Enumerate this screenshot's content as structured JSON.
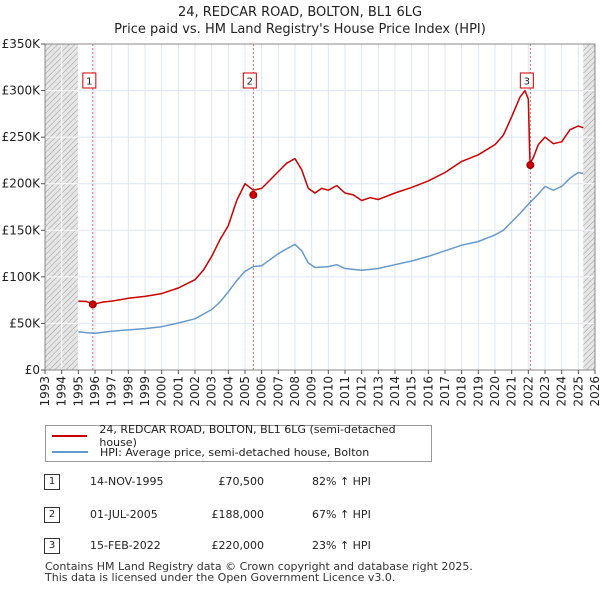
{
  "header": {
    "title": "24, REDCAR ROAD, BOLTON, BL1 6LG",
    "subtitle": "Price paid vs. HM Land Registry's House Price Index (HPI)"
  },
  "chart_data": {
    "type": "line",
    "xlim": [
      1993,
      2026
    ],
    "ylim": [
      0,
      350000
    ],
    "x_ticks": [
      "1993",
      "1994",
      "1995",
      "1996",
      "1997",
      "1998",
      "1999",
      "2000",
      "2001",
      "2002",
      "2003",
      "2004",
      "2005",
      "2006",
      "2007",
      "2008",
      "2009",
      "2010",
      "2011",
      "2012",
      "2013",
      "2014",
      "2015",
      "2016",
      "2017",
      "2018",
      "2019",
      "2020",
      "2021",
      "2022",
      "2023",
      "2024",
      "2025",
      "2026"
    ],
    "y_ticks": [
      {
        "value": 0,
        "label": "£0"
      },
      {
        "value": 50000,
        "label": "£50K"
      },
      {
        "value": 100000,
        "label": "£100K"
      },
      {
        "value": 150000,
        "label": "£150K"
      },
      {
        "value": 200000,
        "label": "£200K"
      },
      {
        "value": 250000,
        "label": "£250K"
      },
      {
        "value": 300000,
        "label": "£300K"
      },
      {
        "value": 350000,
        "label": "£350K"
      }
    ],
    "data_range": [
      1995.0,
      2025.3
    ],
    "series": [
      {
        "name": "24, REDCAR ROAD, BOLTON, BL1 6LG (semi-detached house)",
        "color": "#cc0000",
        "points": [
          [
            1995.0,
            74000
          ],
          [
            1995.5,
            73500
          ],
          [
            1995.87,
            70500
          ],
          [
            1996.5,
            73000
          ],
          [
            1997,
            74000
          ],
          [
            1998,
            77000
          ],
          [
            1999,
            79000
          ],
          [
            2000,
            82000
          ],
          [
            2001,
            88000
          ],
          [
            2002,
            97000
          ],
          [
            2002.5,
            107000
          ],
          [
            2003,
            122000
          ],
          [
            2003.5,
            140000
          ],
          [
            2004,
            155000
          ],
          [
            2004.5,
            182000
          ],
          [
            2005,
            200000
          ],
          [
            2005.5,
            193000
          ],
          [
            2006,
            195000
          ],
          [
            2007,
            213000
          ],
          [
            2007.5,
            222000
          ],
          [
            2008,
            227000
          ],
          [
            2008.4,
            215000
          ],
          [
            2008.8,
            195000
          ],
          [
            2009.2,
            190000
          ],
          [
            2009.6,
            195000
          ],
          [
            2010,
            193000
          ],
          [
            2010.5,
            198000
          ],
          [
            2011,
            190000
          ],
          [
            2011.5,
            188000
          ],
          [
            2012,
            182000
          ],
          [
            2012.5,
            185000
          ],
          [
            2013,
            183000
          ],
          [
            2014,
            190000
          ],
          [
            2015,
            196000
          ],
          [
            2016,
            203000
          ],
          [
            2017,
            212000
          ],
          [
            2018,
            224000
          ],
          [
            2019,
            231000
          ],
          [
            2020,
            242000
          ],
          [
            2020.5,
            252000
          ],
          [
            2021,
            272000
          ],
          [
            2021.5,
            293000
          ],
          [
            2021.8,
            300000
          ],
          [
            2022.0,
            291000
          ],
          [
            2022.1,
            222000
          ],
          [
            2022.3,
            228000
          ],
          [
            2022.6,
            242000
          ],
          [
            2023,
            250000
          ],
          [
            2023.5,
            243000
          ],
          [
            2024,
            245000
          ],
          [
            2024.5,
            258000
          ],
          [
            2025,
            262000
          ],
          [
            2025.3,
            260000
          ]
        ]
      },
      {
        "name": "HPI: Average price, semi-detached house, Bolton",
        "color": "#6699cc",
        "points": [
          [
            1995.0,
            41000
          ],
          [
            1995.5,
            40000
          ],
          [
            1996,
            39500
          ],
          [
            1997,
            41500
          ],
          [
            1998,
            43000
          ],
          [
            1999,
            44500
          ],
          [
            2000,
            46500
          ],
          [
            2001,
            50500
          ],
          [
            2002,
            55000
          ],
          [
            2003,
            65000
          ],
          [
            2003.5,
            73000
          ],
          [
            2004,
            84000
          ],
          [
            2004.5,
            96000
          ],
          [
            2005,
            106000
          ],
          [
            2005.5,
            111000
          ],
          [
            2006,
            112000
          ],
          [
            2007,
            125000
          ],
          [
            2007.5,
            130000
          ],
          [
            2008,
            135000
          ],
          [
            2008.4,
            128000
          ],
          [
            2008.8,
            115000
          ],
          [
            2009.2,
            110000
          ],
          [
            2010,
            111000
          ],
          [
            2010.5,
            113000
          ],
          [
            2011,
            109000
          ],
          [
            2012,
            107000
          ],
          [
            2013,
            109000
          ],
          [
            2014,
            113000
          ],
          [
            2015,
            117000
          ],
          [
            2016,
            122000
          ],
          [
            2017,
            128000
          ],
          [
            2018,
            134000
          ],
          [
            2019,
            138000
          ],
          [
            2020,
            145000
          ],
          [
            2020.5,
            150000
          ],
          [
            2021,
            159000
          ],
          [
            2021.5,
            168000
          ],
          [
            2022,
            178000
          ],
          [
            2022.5,
            187000
          ],
          [
            2023,
            197000
          ],
          [
            2023.5,
            193000
          ],
          [
            2024,
            197000
          ],
          [
            2024.5,
            206000
          ],
          [
            2025,
            212000
          ],
          [
            2025.3,
            211000
          ]
        ]
      }
    ],
    "sales": [
      {
        "label": "1",
        "x": 1995.87,
        "price": 70500
      },
      {
        "label": "2",
        "x": 2005.5,
        "price": 188000
      },
      {
        "label": "3",
        "x": 2022.12,
        "price": 220000
      }
    ]
  },
  "legend": {
    "items": [
      {
        "label": "24, REDCAR ROAD, BOLTON, BL1 6LG (semi-detached house)",
        "color": "#cc0000"
      },
      {
        "label": "HPI: Average price, semi-detached house, Bolton",
        "color": "#6699cc"
      }
    ]
  },
  "sales_table": [
    {
      "num": "1",
      "date": "14-NOV-1995",
      "price": "£70,500",
      "hpi": "82% ↑ HPI"
    },
    {
      "num": "2",
      "date": "01-JUL-2005",
      "price": "£188,000",
      "hpi": "67% ↑ HPI"
    },
    {
      "num": "3",
      "date": "15-FEB-2022",
      "price": "£220,000",
      "hpi": "23% ↑ HPI"
    }
  ],
  "footer": {
    "line1": "Contains HM Land Registry data © Crown copyright and database right 2025.",
    "line2": "This data is licensed under the Open Government Licence v3.0."
  }
}
